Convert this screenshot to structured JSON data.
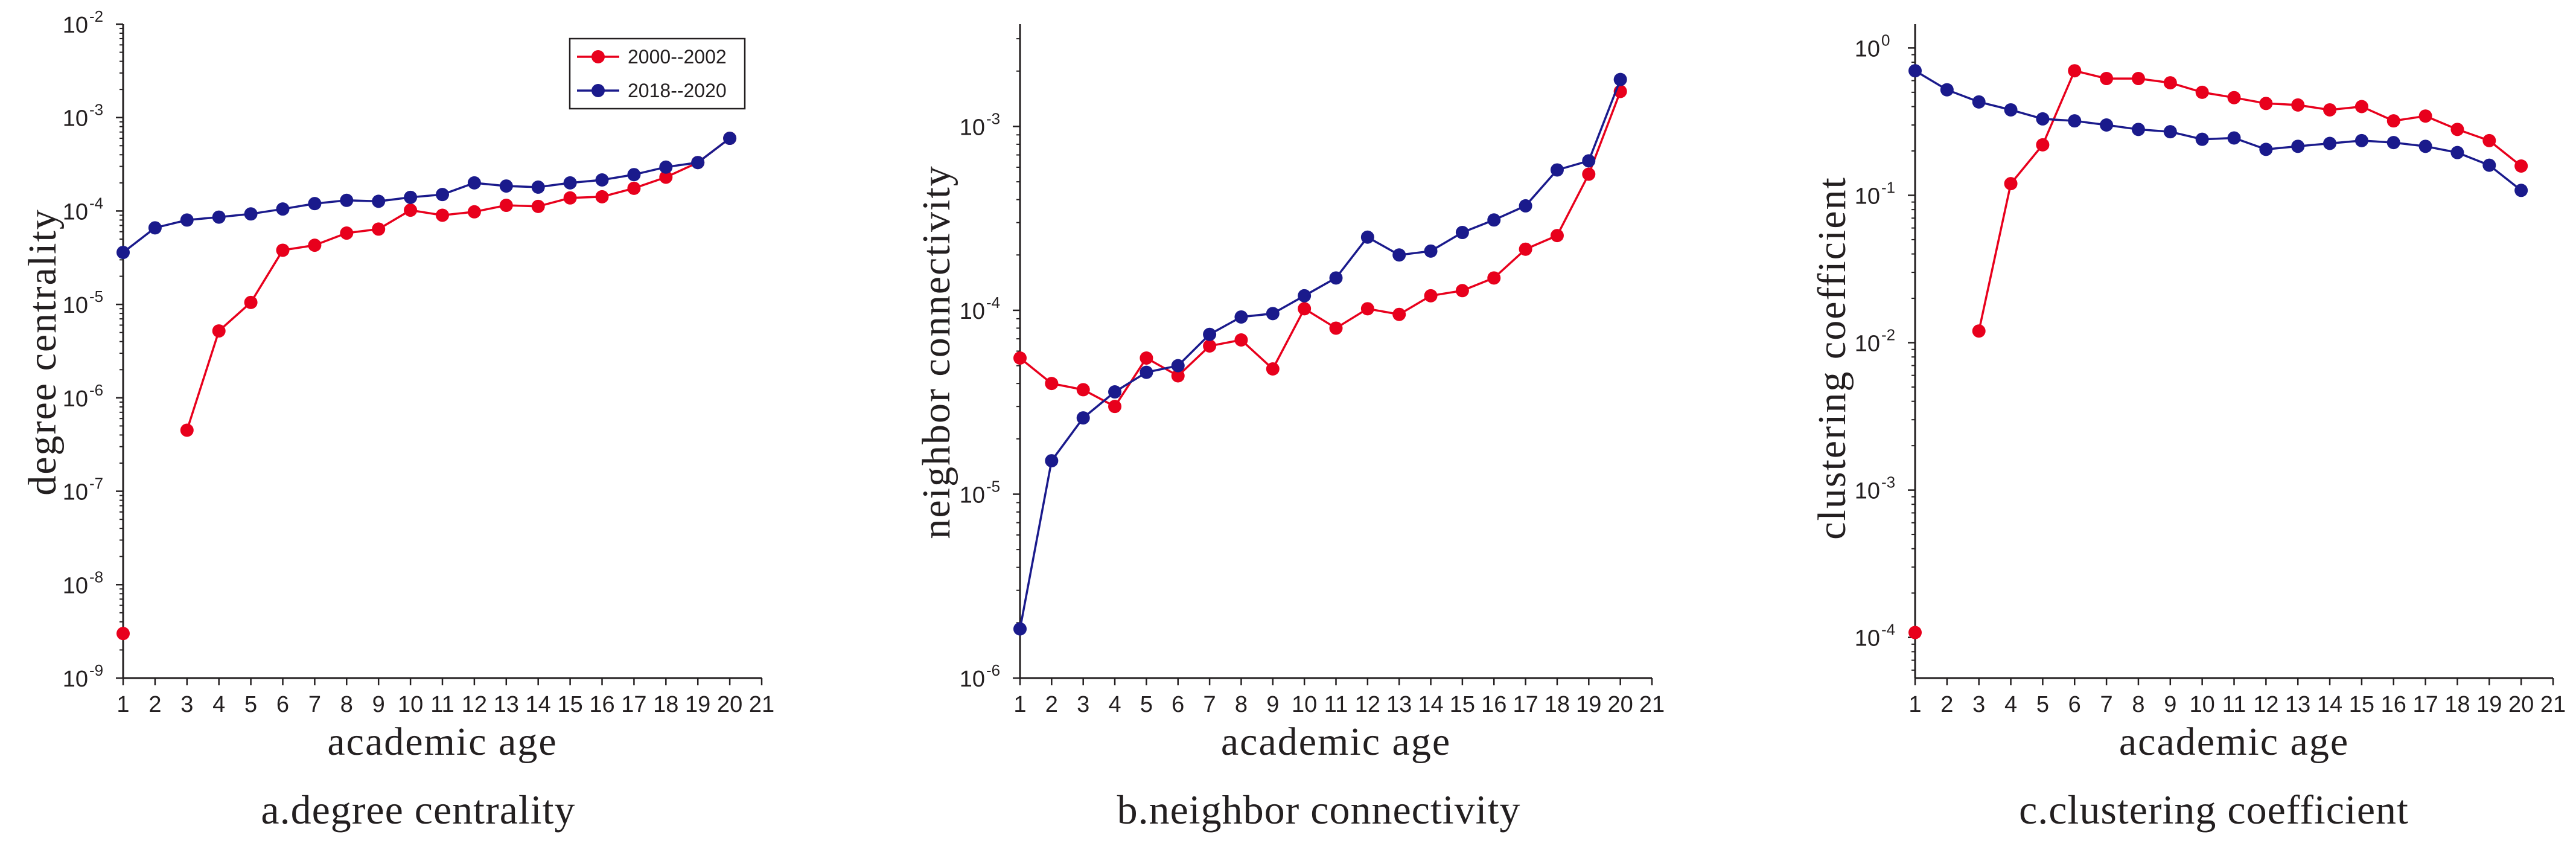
{
  "chart_data": [
    {
      "type": "line",
      "caption": "a.degree centrality",
      "xlabel": "academic age",
      "ylabel": "degree centrality",
      "yscale": "log",
      "ylim": [
        1e-09,
        0.01
      ],
      "xlim": [
        1,
        21
      ],
      "x_ticks": [
        "1",
        "2",
        "3",
        "4",
        "5",
        "6",
        "7",
        "8",
        "9",
        "10",
        "11",
        "12",
        "13",
        "14",
        "15",
        "16",
        "17",
        "18",
        "19",
        "20",
        "21"
      ],
      "y_ticks": [
        {
          "base": "10",
          "exp": "-9"
        },
        {
          "base": "10",
          "exp": "-8"
        },
        {
          "base": "10",
          "exp": "-7"
        },
        {
          "base": "10",
          "exp": "-6"
        },
        {
          "base": "10",
          "exp": "-5"
        },
        {
          "base": "10",
          "exp": "-4"
        },
        {
          "base": "10",
          "exp": "-3"
        },
        {
          "base": "10",
          "exp": "-2"
        }
      ],
      "legend": {
        "placement": "top-right"
      },
      "series": [
        {
          "name": "2000--2002",
          "color": "#e8001c",
          "points": [
            {
              "x": 1,
              "y": 3e-09
            },
            {
              "x": 3,
              "y": 4.5e-07
            },
            {
              "x": 4,
              "y": 5.2e-06
            },
            {
              "x": 5,
              "y": 1.05e-05
            },
            {
              "x": 6,
              "y": 3.8e-05
            },
            {
              "x": 7,
              "y": 4.3e-05
            },
            {
              "x": 8,
              "y": 5.8e-05
            },
            {
              "x": 9,
              "y": 6.4e-05
            },
            {
              "x": 10,
              "y": 0.000102
            },
            {
              "x": 11,
              "y": 9e-05
            },
            {
              "x": 12,
              "y": 9.8e-05
            },
            {
              "x": 13,
              "y": 0.000115
            },
            {
              "x": 14,
              "y": 0.000112
            },
            {
              "x": 15,
              "y": 0.000138
            },
            {
              "x": 16,
              "y": 0.000142
            },
            {
              "x": 17,
              "y": 0.000175
            },
            {
              "x": 18,
              "y": 0.00023
            },
            {
              "x": 19,
              "y": 0.00033
            },
            {
              "x": 20,
              "y": 0.0006
            }
          ]
        },
        {
          "name": "2018--2020",
          "color": "#1a1a8c",
          "points": [
            {
              "x": 1,
              "y": 3.6e-05
            },
            {
              "x": 2,
              "y": 6.6e-05
            },
            {
              "x": 3,
              "y": 8e-05
            },
            {
              "x": 4,
              "y": 8.6e-05
            },
            {
              "x": 5,
              "y": 9.3e-05
            },
            {
              "x": 6,
              "y": 0.000105
            },
            {
              "x": 7,
              "y": 0.00012
            },
            {
              "x": 8,
              "y": 0.00013
            },
            {
              "x": 9,
              "y": 0.000127
            },
            {
              "x": 10,
              "y": 0.00014
            },
            {
              "x": 11,
              "y": 0.00015
            },
            {
              "x": 12,
              "y": 0.0002
            },
            {
              "x": 13,
              "y": 0.000185
            },
            {
              "x": 14,
              "y": 0.00018
            },
            {
              "x": 15,
              "y": 0.0002
            },
            {
              "x": 16,
              "y": 0.000215
            },
            {
              "x": 17,
              "y": 0.000245
            },
            {
              "x": 18,
              "y": 0.000295
            },
            {
              "x": 19,
              "y": 0.00033
            },
            {
              "x": 20,
              "y": 0.0006
            }
          ]
        }
      ]
    },
    {
      "type": "line",
      "caption": "b.neighbor connectivity",
      "xlabel": "academic age",
      "ylabel": "neighbor connectivity",
      "yscale": "log",
      "ylim": [
        1e-06,
        0.0036
      ],
      "xlim": [
        1,
        21
      ],
      "x_ticks": [
        "1",
        "2",
        "3",
        "4",
        "5",
        "6",
        "7",
        "8",
        "9",
        "10",
        "11",
        "12",
        "13",
        "14",
        "15",
        "16",
        "17",
        "18",
        "19",
        "20",
        "21"
      ],
      "y_ticks": [
        {
          "base": "10",
          "exp": "-6"
        },
        {
          "base": "10",
          "exp": "-5"
        },
        {
          "base": "10",
          "exp": "-4"
        },
        {
          "base": "10",
          "exp": "-3"
        }
      ],
      "series": [
        {
          "name": "2000--2002",
          "color": "#e8001c",
          "points": [
            {
              "x": 1,
              "y": 5.5e-05
            },
            {
              "x": 2,
              "y": 4e-05
            },
            {
              "x": 3,
              "y": 3.7e-05
            },
            {
              "x": 4,
              "y": 3e-05
            },
            {
              "x": 5,
              "y": 5.5e-05
            },
            {
              "x": 6,
              "y": 4.4e-05
            },
            {
              "x": 7,
              "y": 6.4e-05
            },
            {
              "x": 8,
              "y": 6.9e-05
            },
            {
              "x": 9,
              "y": 4.8e-05
            },
            {
              "x": 10,
              "y": 0.000102
            },
            {
              "x": 11,
              "y": 8e-05
            },
            {
              "x": 12,
              "y": 0.000102
            },
            {
              "x": 13,
              "y": 9.5e-05
            },
            {
              "x": 14,
              "y": 0.00012
            },
            {
              "x": 15,
              "y": 0.000128
            },
            {
              "x": 16,
              "y": 0.00015
            },
            {
              "x": 17,
              "y": 0.000215
            },
            {
              "x": 18,
              "y": 0.000255
            },
            {
              "x": 19,
              "y": 0.00055
            },
            {
              "x": 20,
              "y": 0.00155
            }
          ]
        },
        {
          "name": "2018--2020",
          "color": "#1a1a8c",
          "points": [
            {
              "x": 1,
              "y": 1.85e-06
            },
            {
              "x": 2,
              "y": 1.52e-05
            },
            {
              "x": 3,
              "y": 2.6e-05
            },
            {
              "x": 4,
              "y": 3.6e-05
            },
            {
              "x": 5,
              "y": 4.6e-05
            },
            {
              "x": 6,
              "y": 5e-05
            },
            {
              "x": 7,
              "y": 7.4e-05
            },
            {
              "x": 8,
              "y": 9.2e-05
            },
            {
              "x": 9,
              "y": 9.6e-05
            },
            {
              "x": 10,
              "y": 0.00012
            },
            {
              "x": 11,
              "y": 0.00015
            },
            {
              "x": 12,
              "y": 0.00025
            },
            {
              "x": 13,
              "y": 0.0002
            },
            {
              "x": 14,
              "y": 0.00021
            },
            {
              "x": 15,
              "y": 0.000265
            },
            {
              "x": 16,
              "y": 0.00031
            },
            {
              "x": 17,
              "y": 0.00037
            },
            {
              "x": 18,
              "y": 0.00058
            },
            {
              "x": 19,
              "y": 0.00065
            },
            {
              "x": 20,
              "y": 0.0018
            }
          ]
        }
      ]
    },
    {
      "type": "line",
      "caption": "c.clustering coefficient",
      "xlabel": "academic age",
      "ylabel": "clustering coefficient",
      "yscale": "log",
      "ylim": [
        5.3e-05,
        1.45
      ],
      "xlim": [
        1,
        21
      ],
      "x_ticks": [
        "1",
        "2",
        "3",
        "4",
        "5",
        "6",
        "7",
        "8",
        "9",
        "10",
        "11",
        "12",
        "13",
        "14",
        "15",
        "16",
        "17",
        "18",
        "19",
        "20",
        "21"
      ],
      "y_ticks": [
        {
          "base": "10",
          "exp": "-4"
        },
        {
          "base": "10",
          "exp": "-3"
        },
        {
          "base": "10",
          "exp": "-2"
        },
        {
          "base": "10",
          "exp": "-1"
        },
        {
          "base": "10",
          "exp": "0"
        }
      ],
      "series": [
        {
          "name": "2000--2002",
          "color": "#e8001c",
          "points": [
            {
              "x": 1,
              "y": 0.000108
            },
            {
              "x": 3,
              "y": 0.012
            },
            {
              "x": 4,
              "y": 0.12
            },
            {
              "x": 5,
              "y": 0.22
            },
            {
              "x": 6,
              "y": 0.7
            },
            {
              "x": 7,
              "y": 0.62
            },
            {
              "x": 8,
              "y": 0.62
            },
            {
              "x": 9,
              "y": 0.58
            },
            {
              "x": 10,
              "y": 0.5
            },
            {
              "x": 11,
              "y": 0.46
            },
            {
              "x": 12,
              "y": 0.42
            },
            {
              "x": 13,
              "y": 0.41
            },
            {
              "x": 14,
              "y": 0.38
            },
            {
              "x": 15,
              "y": 0.4
            },
            {
              "x": 16,
              "y": 0.32
            },
            {
              "x": 17,
              "y": 0.345
            },
            {
              "x": 18,
              "y": 0.28
            },
            {
              "x": 19,
              "y": 0.235
            },
            {
              "x": 20,
              "y": 0.158
            }
          ]
        },
        {
          "name": "2018--2020",
          "color": "#1a1a8c",
          "points": [
            {
              "x": 1,
              "y": 0.7
            },
            {
              "x": 2,
              "y": 0.52
            },
            {
              "x": 3,
              "y": 0.43
            },
            {
              "x": 4,
              "y": 0.38
            },
            {
              "x": 5,
              "y": 0.33
            },
            {
              "x": 6,
              "y": 0.32
            },
            {
              "x": 7,
              "y": 0.3
            },
            {
              "x": 8,
              "y": 0.28
            },
            {
              "x": 9,
              "y": 0.27
            },
            {
              "x": 10,
              "y": 0.24
            },
            {
              "x": 11,
              "y": 0.245
            },
            {
              "x": 12,
              "y": 0.205
            },
            {
              "x": 13,
              "y": 0.215
            },
            {
              "x": 14,
              "y": 0.225
            },
            {
              "x": 15,
              "y": 0.235
            },
            {
              "x": 16,
              "y": 0.228
            },
            {
              "x": 17,
              "y": 0.215
            },
            {
              "x": 18,
              "y": 0.195
            },
            {
              "x": 19,
              "y": 0.16
            },
            {
              "x": 20,
              "y": 0.108
            }
          ]
        }
      ]
    }
  ]
}
